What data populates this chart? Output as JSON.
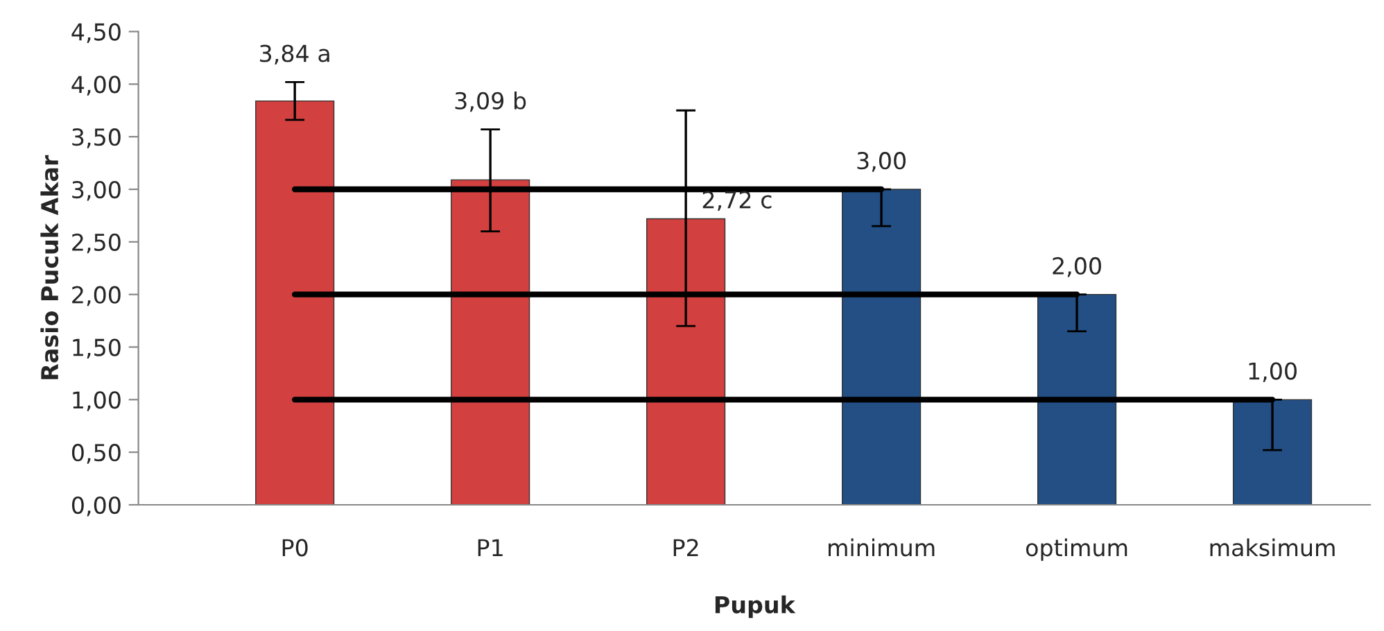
{
  "chart_data": {
    "type": "bar",
    "xlabel": "Pupuk",
    "ylabel": "Rasio Pucuk Akar",
    "categories": [
      "P0",
      "P1",
      "P2",
      "minimum",
      "optimum",
      "maksimum"
    ],
    "series": [
      {
        "values": [
          3.84,
          3.09,
          2.72,
          3.0,
          2.0,
          1.0
        ],
        "colors": [
          "#d24040",
          "#d24040",
          "#d24040",
          "#234f85",
          "#234f85",
          "#234f85"
        ],
        "errors": [
          [
            3.66,
            4.02
          ],
          [
            2.6,
            3.57
          ],
          [
            1.7,
            3.75
          ],
          [
            2.65,
            3.0
          ],
          [
            1.65,
            2.0
          ],
          [
            0.52,
            1.0
          ]
        ],
        "value_labels": [
          "3,84 a",
          "3,09 b",
          "2,72 c",
          "3,00",
          "2,00",
          "1,00"
        ]
      },
      {
        "type": "line",
        "color": "#000000",
        "values": [
          3.0,
          3.0,
          3.0,
          3.0,
          null,
          null
        ]
      },
      {
        "type": "line",
        "color": "#000000",
        "values": [
          2.0,
          2.0,
          2.0,
          2.0,
          2.0,
          null
        ]
      },
      {
        "type": "line",
        "color": "#000000",
        "values": [
          1.0,
          1.0,
          1.0,
          1.0,
          1.0,
          1.0
        ]
      }
    ],
    "ylim": [
      0,
      4.5
    ],
    "yticks": [
      {
        "value": 0,
        "label": "0,00"
      },
      {
        "value": 0.5,
        "label": "0,50"
      },
      {
        "value": 1.0,
        "label": "1,00"
      },
      {
        "value": 1.5,
        "label": "1,50"
      },
      {
        "value": 2.0,
        "label": "2,00"
      },
      {
        "value": 2.5,
        "label": "2,50"
      },
      {
        "value": 3.0,
        "label": "3,00"
      },
      {
        "value": 3.5,
        "label": "3,50"
      },
      {
        "value": 4.0,
        "label": "4,00"
      },
      {
        "value": 4.5,
        "label": "4,50"
      }
    ],
    "grid": false
  }
}
